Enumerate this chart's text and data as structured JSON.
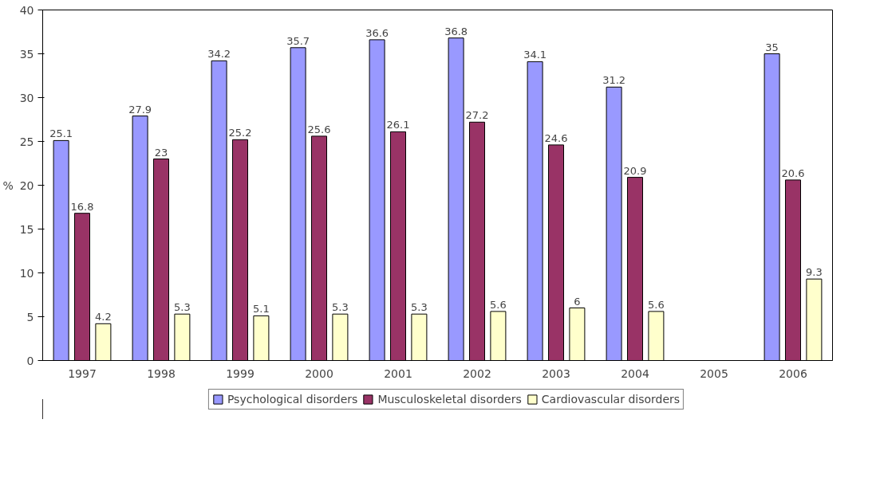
{
  "chart_data": {
    "type": "bar",
    "ylabel": "%",
    "categories": [
      "1997",
      "1998",
      "1999",
      "2000",
      "2001",
      "2002",
      "2003",
      "2004",
      "2005",
      "2006"
    ],
    "series": [
      {
        "name": "Psychological disorders",
        "color": "#9999ff",
        "values": [
          25.1,
          27.9,
          34.2,
          35.7,
          36.6,
          36.8,
          34.1,
          31.2,
          null,
          35
        ]
      },
      {
        "name": "Musculoskeletal disorders",
        "color": "#993366",
        "values": [
          16.8,
          23,
          25.2,
          25.6,
          26.1,
          27.2,
          24.6,
          20.9,
          null,
          20.6
        ]
      },
      {
        "name": "Cardiovascular disorders",
        "color": "#ffffcc",
        "values": [
          4.2,
          5.3,
          5.1,
          5.3,
          5.3,
          5.6,
          6,
          5.6,
          null,
          9.3
        ]
      }
    ],
    "ylim": [
      0,
      40
    ],
    "yticks": [
      0,
      5,
      10,
      15,
      20,
      25,
      30,
      35,
      40
    ],
    "data_labels": true,
    "grid": false,
    "legend": "bottom"
  }
}
